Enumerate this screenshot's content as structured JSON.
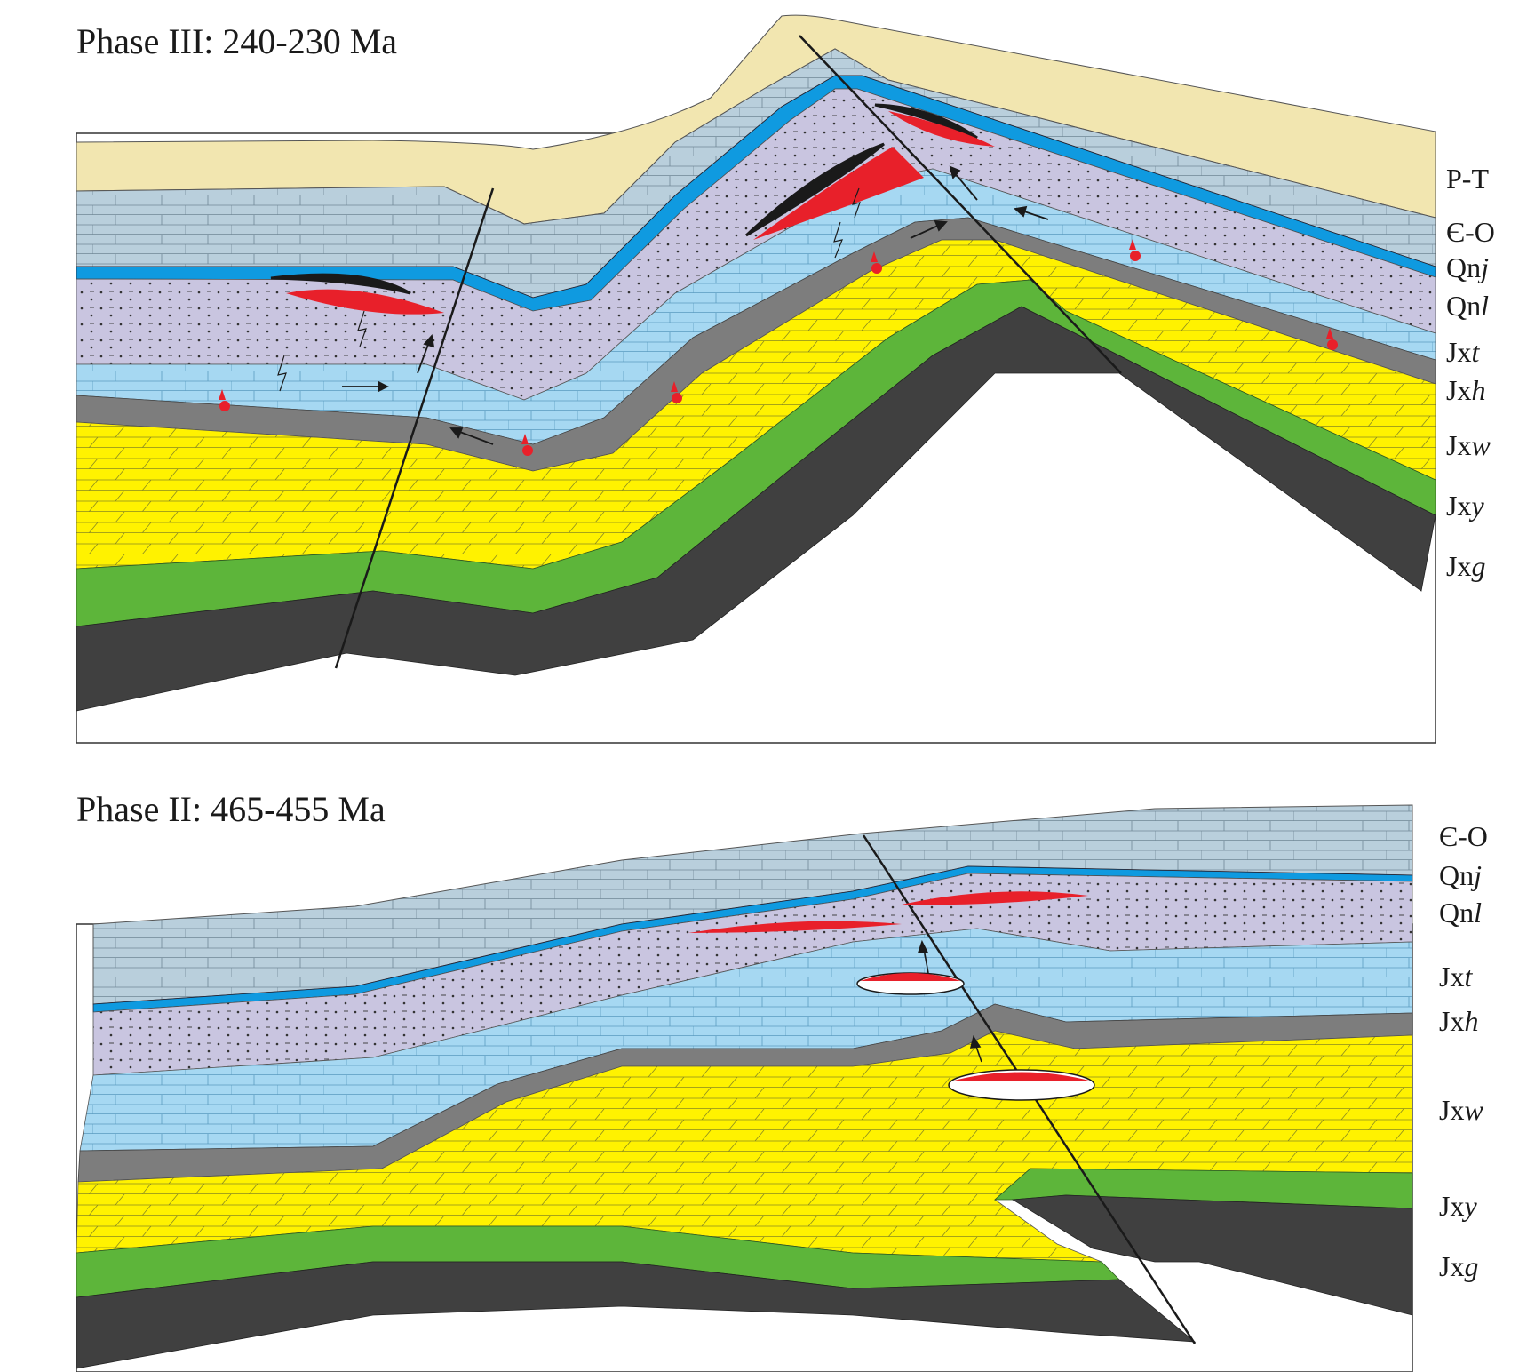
{
  "panels": [
    {
      "title": "Phase III: 240-230 Ma",
      "units": [
        {
          "main": "P-T",
          "suffix": ""
        },
        {
          "main": "Є-O",
          "suffix": ""
        },
        {
          "main": "Qn",
          "suffix": "j"
        },
        {
          "main": "Qn",
          "suffix": "l"
        },
        {
          "main": "Jx",
          "suffix": "t"
        },
        {
          "main": "Jx",
          "suffix": "h"
        },
        {
          "main": "Jx",
          "suffix": "w"
        },
        {
          "main": "Jx",
          "suffix": "y"
        },
        {
          "main": "Jx",
          "suffix": "g"
        }
      ]
    },
    {
      "title": "Phase II: 465-455 Ma",
      "units": [
        {
          "main": "Є-O",
          "suffix": ""
        },
        {
          "main": "Qn",
          "suffix": "j"
        },
        {
          "main": "Qn",
          "suffix": "l"
        },
        {
          "main": "Jx",
          "suffix": "t"
        },
        {
          "main": "Jx",
          "suffix": "h"
        },
        {
          "main": "Jx",
          "suffix": "w"
        },
        {
          "main": "Jx",
          "suffix": "y"
        },
        {
          "main": "Jx",
          "suffix": "g"
        }
      ]
    }
  ],
  "colors": {
    "P-T": "#f2e6b0",
    "Є-O": "#b9cfdc",
    "Qnj": "#0f9ae0",
    "Qnl": "#c9c5e0",
    "Jxt": "#a6d8f2",
    "Jxh": "#7d7d7d",
    "Jxw": "#fff200",
    "Jxy": "#5db53a",
    "Jxg": "#404040",
    "hydrocarbon": "#e8202a",
    "bitumen": "#1a1a1a",
    "fault": "#1a1a1a"
  }
}
